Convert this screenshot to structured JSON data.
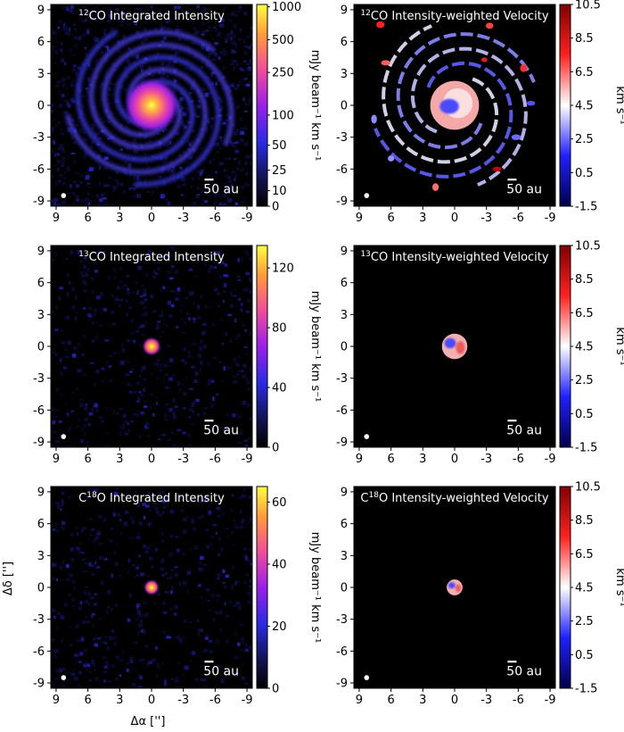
{
  "figure_axes": {
    "ylabel": "Δδ ['']",
    "xlabel": "Δα ['']"
  },
  "chart_data": [
    {
      "type": "heatmap",
      "kind": "intensity",
      "molecule": "12CO",
      "title_prefix": "",
      "title_sup": "12",
      "title_main": "CO Integrated Intensity",
      "x_ticks": [
        9,
        6,
        3,
        0,
        -3,
        -6,
        -9
      ],
      "y_ticks": [
        9,
        6,
        3,
        0,
        -3,
        -6,
        -9
      ],
      "xlim": [
        9.5,
        -9.5
      ],
      "ylim": [
        -9.5,
        9.5
      ],
      "colorbar": {
        "label": "mJy beam⁻¹ km s⁻¹",
        "scale": "asinh",
        "ticks": [
          "0",
          "10",
          "25",
          "50",
          "100",
          "250",
          "500",
          "1000"
        ],
        "range": [
          0,
          1050
        ],
        "cmap": "plasma-like"
      },
      "scalebar_label": "50 au",
      "morphology": "bright centrally peaked disk with extended multi-arm spiral structure out to ~8''"
    },
    {
      "type": "heatmap",
      "kind": "velocity",
      "molecule": "12CO",
      "title_prefix": "",
      "title_sup": "12",
      "title_main": "CO Intensity-weighted Velocity",
      "x_ticks": [
        9,
        6,
        3,
        0,
        -3,
        -6,
        -9
      ],
      "y_ticks": [
        9,
        6,
        3,
        0,
        -3,
        -6,
        -9
      ],
      "xlim": [
        9.5,
        -9.5
      ],
      "ylim": [
        -9.5,
        9.5
      ],
      "colorbar": {
        "label": "km s⁻¹",
        "ticks": [
          "10.5",
          "8.5",
          "6.5",
          "4.5",
          "2.5",
          "0.5",
          "-1.5"
        ],
        "range": [
          -1.5,
          10.5
        ],
        "cmap": "seismic"
      },
      "scalebar_label": "50 au",
      "morphology": "inner disk ~4.5-6 km/s with blue-shifted core; arms blue/white, scattered red clumps"
    },
    {
      "type": "heatmap",
      "kind": "intensity",
      "molecule": "13CO",
      "title_prefix": "",
      "title_sup": "13",
      "title_main": "CO Integrated Intensity",
      "x_ticks": [
        9,
        6,
        3,
        0,
        -3,
        -6,
        -9
      ],
      "y_ticks": [
        9,
        6,
        3,
        0,
        -3,
        -6,
        -9
      ],
      "xlim": [
        9.5,
        -9.5
      ],
      "ylim": [
        -9.5,
        9.5
      ],
      "colorbar": {
        "label": "mJy beam⁻¹ km s⁻¹",
        "scale": "linear",
        "ticks": [
          "0",
          "40",
          "80",
          "120"
        ],
        "range": [
          0,
          135
        ],
        "cmap": "plasma-like"
      },
      "scalebar_label": "50 au",
      "morphology": "compact central source"
    },
    {
      "type": "heatmap",
      "kind": "velocity",
      "molecule": "13CO",
      "title_prefix": "",
      "title_sup": "13",
      "title_main": "CO Intensity-weighted Velocity",
      "x_ticks": [
        9,
        6,
        3,
        0,
        -3,
        -6,
        -9
      ],
      "y_ticks": [
        9,
        6,
        3,
        0,
        -3,
        -6,
        -9
      ],
      "xlim": [
        9.5,
        -9.5
      ],
      "ylim": [
        -9.5,
        9.5
      ],
      "colorbar": {
        "label": "km s⁻¹",
        "ticks": [
          "10.5",
          "8.5",
          "6.5",
          "4.5",
          "2.5",
          "0.5",
          "-1.5"
        ],
        "range": [
          -1.5,
          10.5
        ],
        "cmap": "seismic"
      },
      "scalebar_label": "50 au",
      "morphology": "compact disk, red east / blue north-west"
    },
    {
      "type": "heatmap",
      "kind": "intensity",
      "molecule": "C18O",
      "title_prefix": "C",
      "title_sup": "18",
      "title_main": "O Integrated Intensity",
      "x_ticks": [
        9,
        6,
        3,
        0,
        -3,
        -6,
        -9
      ],
      "y_ticks": [
        9,
        6,
        3,
        0,
        -3,
        -6,
        -9
      ],
      "xlim": [
        9.5,
        -9.5
      ],
      "ylim": [
        -9.5,
        9.5
      ],
      "colorbar": {
        "label": "mJy beam⁻¹ km s⁻¹",
        "scale": "linear",
        "ticks": [
          "0",
          "20",
          "40",
          "60"
        ],
        "range": [
          0,
          65
        ],
        "cmap": "plasma-like"
      },
      "scalebar_label": "50 au",
      "morphology": "compact central source"
    },
    {
      "type": "heatmap",
      "kind": "velocity",
      "molecule": "C18O",
      "title_prefix": "C",
      "title_sup": "18",
      "title_main": "O Intensity-weighted Velocity",
      "x_ticks": [
        9,
        6,
        3,
        0,
        -3,
        -6,
        -9
      ],
      "y_ticks": [
        9,
        6,
        3,
        0,
        -3,
        -6,
        -9
      ],
      "xlim": [
        9.5,
        -9.5
      ],
      "ylim": [
        -9.5,
        9.5
      ],
      "colorbar": {
        "label": "km s⁻¹",
        "ticks": [
          "10.5",
          "8.5",
          "6.5",
          "4.5",
          "2.5",
          "0.5",
          "-1.5"
        ],
        "range": [
          -1.5,
          10.5
        ],
        "cmap": "seismic"
      },
      "scalebar_label": "50 au",
      "morphology": "very compact disk, red east / blue west"
    }
  ]
}
